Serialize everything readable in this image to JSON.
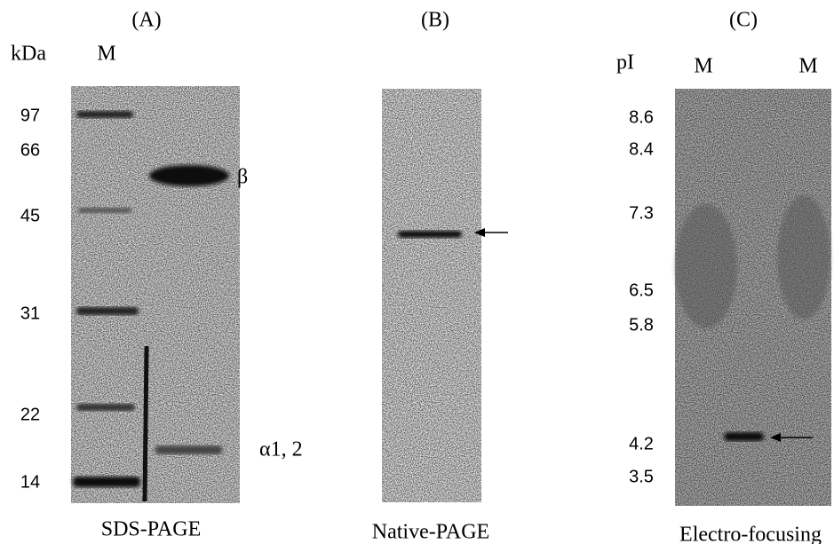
{
  "panels": [
    {
      "label": "(A)",
      "unit": "kDa",
      "lanes": [
        "M"
      ],
      "markers": [
        "97",
        "66",
        "45",
        "31",
        "22",
        "14"
      ],
      "bands": [
        "β",
        "α1, 2"
      ],
      "caption": "SDS-PAGE"
    },
    {
      "label": "(B)",
      "caption": "Native-PAGE"
    },
    {
      "label": "(C)",
      "unit": "pI",
      "lanes": [
        "M",
        "M"
      ],
      "markers": [
        "8.6",
        "8.4",
        "7.3",
        "6.5",
        "5.8",
        "4.2",
        "3.5"
      ],
      "caption": "Electro-focusing"
    }
  ]
}
